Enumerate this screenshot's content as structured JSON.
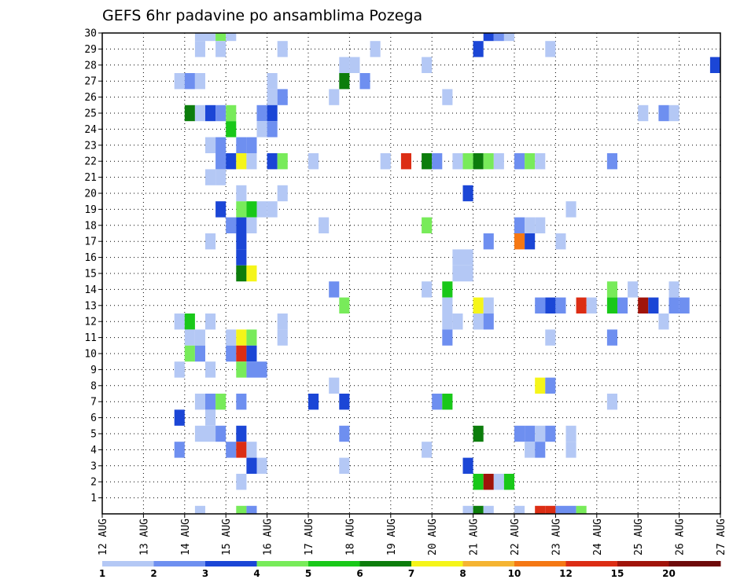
{
  "chart_data": {
    "type": "heatmap",
    "title": "GEFS 6hr padavine po ansamblima Pozega",
    "xlabel": "",
    "ylabel": "",
    "x_tick_labels": [
      "12 AUG",
      "13 AUG",
      "14 AUG",
      "15 AUG",
      "16 AUG",
      "17 AUG",
      "18 AUG",
      "19 AUG",
      "20 AUG",
      "21 AUG",
      "22 AUG",
      "23 AUG",
      "24 AUG",
      "25 AUG",
      "26 AUG",
      "27 AUG"
    ],
    "y_tick_labels": [
      "1",
      "2",
      "3",
      "4",
      "5",
      "6",
      "7",
      "8",
      "9",
      "10",
      "11",
      "12",
      "13",
      "14",
      "15",
      "16",
      "17",
      "18",
      "19",
      "20",
      "21",
      "22",
      "23",
      "24",
      "25",
      "26",
      "27",
      "28",
      "29",
      "30"
    ],
    "x_units": "6-hour steps from 12 AUG 00Z",
    "members_range": [
      0,
      30
    ],
    "grid": true,
    "colorbar_levels": [
      "1",
      "2",
      "3",
      "4",
      "5",
      "6",
      "7",
      "8",
      "10",
      "12",
      "15",
      "20"
    ],
    "colorbar_colors": [
      "#b4c8f5",
      "#6e8ff0",
      "#1b46d6",
      "#78eb5a",
      "#19c819",
      "#0c7d0c",
      "#f5f519",
      "#f5b432",
      "#f57814",
      "#dc2d14",
      "#a0140a",
      "#6e0a0a"
    ],
    "cells": [
      [
        30,
        9,
        1
      ],
      [
        30,
        10,
        1
      ],
      [
        30,
        11,
        4
      ],
      [
        30,
        12,
        1
      ],
      [
        30,
        37,
        3
      ],
      [
        30,
        38,
        2
      ],
      [
        30,
        39,
        1
      ],
      [
        29,
        9,
        1
      ],
      [
        29,
        11,
        1
      ],
      [
        29,
        17,
        1
      ],
      [
        29,
        26,
        1
      ],
      [
        29,
        36,
        3
      ],
      [
        29,
        43,
        1
      ],
      [
        28,
        23,
        1
      ],
      [
        28,
        24,
        1
      ],
      [
        28,
        31,
        1
      ],
      [
        28,
        59,
        3
      ],
      [
        27,
        7,
        1
      ],
      [
        27,
        8,
        2
      ],
      [
        27,
        9,
        1
      ],
      [
        27,
        16,
        1
      ],
      [
        27,
        23,
        6
      ],
      [
        27,
        25,
        2
      ],
      [
        26,
        16,
        1
      ],
      [
        26,
        17,
        2
      ],
      [
        26,
        22,
        1
      ],
      [
        26,
        33,
        1
      ],
      [
        25,
        8,
        6
      ],
      [
        25,
        9,
        1
      ],
      [
        25,
        10,
        3
      ],
      [
        25,
        11,
        2
      ],
      [
        25,
        12,
        4
      ],
      [
        25,
        15,
        2
      ],
      [
        25,
        16,
        3
      ],
      [
        25,
        52,
        1
      ],
      [
        25,
        54,
        2
      ],
      [
        25,
        55,
        1
      ],
      [
        24,
        12,
        5
      ],
      [
        24,
        15,
        1
      ],
      [
        24,
        16,
        2
      ],
      [
        23,
        10,
        1
      ],
      [
        23,
        11,
        2
      ],
      [
        23,
        13,
        2
      ],
      [
        23,
        14,
        2
      ],
      [
        22,
        11,
        2
      ],
      [
        22,
        12,
        3
      ],
      [
        22,
        13,
        7
      ],
      [
        22,
        14,
        1
      ],
      [
        22,
        16,
        3
      ],
      [
        22,
        17,
        4
      ],
      [
        22,
        20,
        1
      ],
      [
        22,
        27,
        1
      ],
      [
        22,
        29,
        10
      ],
      [
        22,
        31,
        6
      ],
      [
        22,
        32,
        2
      ],
      [
        22,
        34,
        1
      ],
      [
        22,
        35,
        4
      ],
      [
        22,
        36,
        6
      ],
      [
        22,
        37,
        4
      ],
      [
        22,
        38,
        1
      ],
      [
        22,
        40,
        2
      ],
      [
        22,
        41,
        4
      ],
      [
        22,
        42,
        1
      ],
      [
        22,
        49,
        2
      ],
      [
        21,
        10,
        1
      ],
      [
        21,
        11,
        1
      ],
      [
        20,
        13,
        1
      ],
      [
        20,
        17,
        1
      ],
      [
        20,
        35,
        3
      ],
      [
        19,
        11,
        3
      ],
      [
        19,
        13,
        4
      ],
      [
        19,
        14,
        5
      ],
      [
        19,
        15,
        1
      ],
      [
        19,
        16,
        1
      ],
      [
        19,
        45,
        1
      ],
      [
        18,
        12,
        2
      ],
      [
        18,
        13,
        3
      ],
      [
        18,
        14,
        1
      ],
      [
        18,
        21,
        1
      ],
      [
        18,
        31,
        4
      ],
      [
        18,
        40,
        2
      ],
      [
        18,
        41,
        1
      ],
      [
        18,
        42,
        1
      ],
      [
        17,
        10,
        1
      ],
      [
        17,
        13,
        3
      ],
      [
        17,
        37,
        2
      ],
      [
        17,
        40,
        9
      ],
      [
        17,
        41,
        3
      ],
      [
        17,
        44,
        1
      ],
      [
        16,
        13,
        3
      ],
      [
        16,
        34,
        1
      ],
      [
        16,
        35,
        1
      ],
      [
        15,
        13,
        6
      ],
      [
        15,
        14,
        7
      ],
      [
        15,
        34,
        1
      ],
      [
        15,
        35,
        1
      ],
      [
        14,
        22,
        2
      ],
      [
        14,
        31,
        1
      ],
      [
        14,
        33,
        5
      ],
      [
        14,
        49,
        4
      ],
      [
        14,
        51,
        1
      ],
      [
        14,
        55,
        1
      ],
      [
        13,
        23,
        4
      ],
      [
        13,
        33,
        1
      ],
      [
        13,
        36,
        7
      ],
      [
        13,
        37,
        1
      ],
      [
        13,
        42,
        2
      ],
      [
        13,
        43,
        3
      ],
      [
        13,
        44,
        2
      ],
      [
        13,
        46,
        10
      ],
      [
        13,
        47,
        1
      ],
      [
        13,
        49,
        5
      ],
      [
        13,
        50,
        2
      ],
      [
        13,
        52,
        11
      ],
      [
        13,
        53,
        3
      ],
      [
        13,
        55,
        2
      ],
      [
        13,
        56,
        2
      ],
      [
        12,
        7,
        1
      ],
      [
        12,
        8,
        5
      ],
      [
        12,
        10,
        1
      ],
      [
        12,
        17,
        1
      ],
      [
        12,
        33,
        1
      ],
      [
        12,
        34,
        1
      ],
      [
        12,
        36,
        1
      ],
      [
        12,
        37,
        2
      ],
      [
        12,
        54,
        1
      ],
      [
        11,
        8,
        1
      ],
      [
        11,
        9,
        1
      ],
      [
        11,
        12,
        1
      ],
      [
        11,
        13,
        7
      ],
      [
        11,
        14,
        4
      ],
      [
        11,
        17,
        1
      ],
      [
        11,
        33,
        2
      ],
      [
        11,
        43,
        1
      ],
      [
        11,
        49,
        2
      ],
      [
        10,
        8,
        4
      ],
      [
        10,
        9,
        2
      ],
      [
        10,
        12,
        2
      ],
      [
        10,
        13,
        10
      ],
      [
        10,
        14,
        3
      ],
      [
        9,
        7,
        1
      ],
      [
        9,
        10,
        1
      ],
      [
        9,
        13,
        4
      ],
      [
        9,
        14,
        2
      ],
      [
        9,
        15,
        2
      ],
      [
        8,
        22,
        1
      ],
      [
        8,
        42,
        7
      ],
      [
        8,
        43,
        2
      ],
      [
        7,
        9,
        1
      ],
      [
        7,
        10,
        2
      ],
      [
        7,
        11,
        4
      ],
      [
        7,
        13,
        2
      ],
      [
        7,
        20,
        3
      ],
      [
        7,
        23,
        3
      ],
      [
        7,
        32,
        2
      ],
      [
        7,
        33,
        5
      ],
      [
        7,
        49,
        1
      ],
      [
        6,
        7,
        3
      ],
      [
        6,
        10,
        1
      ],
      [
        5,
        9,
        1
      ],
      [
        5,
        10,
        1
      ],
      [
        5,
        11,
        2
      ],
      [
        5,
        13,
        3
      ],
      [
        5,
        23,
        2
      ],
      [
        5,
        36,
        6
      ],
      [
        5,
        40,
        2
      ],
      [
        5,
        41,
        2
      ],
      [
        5,
        42,
        1
      ],
      [
        5,
        43,
        2
      ],
      [
        5,
        45,
        1
      ],
      [
        4,
        7,
        2
      ],
      [
        4,
        12,
        2
      ],
      [
        4,
        13,
        10
      ],
      [
        4,
        14,
        1
      ],
      [
        4,
        31,
        1
      ],
      [
        4,
        41,
        1
      ],
      [
        4,
        42,
        2
      ],
      [
        4,
        45,
        1
      ],
      [
        3,
        14,
        3
      ],
      [
        3,
        15,
        1
      ],
      [
        3,
        23,
        1
      ],
      [
        3,
        35,
        3
      ],
      [
        2,
        13,
        1
      ],
      [
        2,
        36,
        5
      ],
      [
        2,
        37,
        11
      ],
      [
        2,
        38,
        1
      ],
      [
        2,
        39,
        5
      ],
      [
        0,
        9,
        1
      ],
      [
        0,
        13,
        4
      ],
      [
        0,
        14,
        2
      ],
      [
        0,
        35,
        1
      ],
      [
        0,
        36,
        6
      ],
      [
        0,
        37,
        1
      ],
      [
        0,
        40,
        1
      ],
      [
        0,
        42,
        10
      ],
      [
        0,
        43,
        10
      ],
      [
        0,
        44,
        2
      ],
      [
        0,
        45,
        2
      ],
      [
        0,
        46,
        4
      ]
    ]
  }
}
